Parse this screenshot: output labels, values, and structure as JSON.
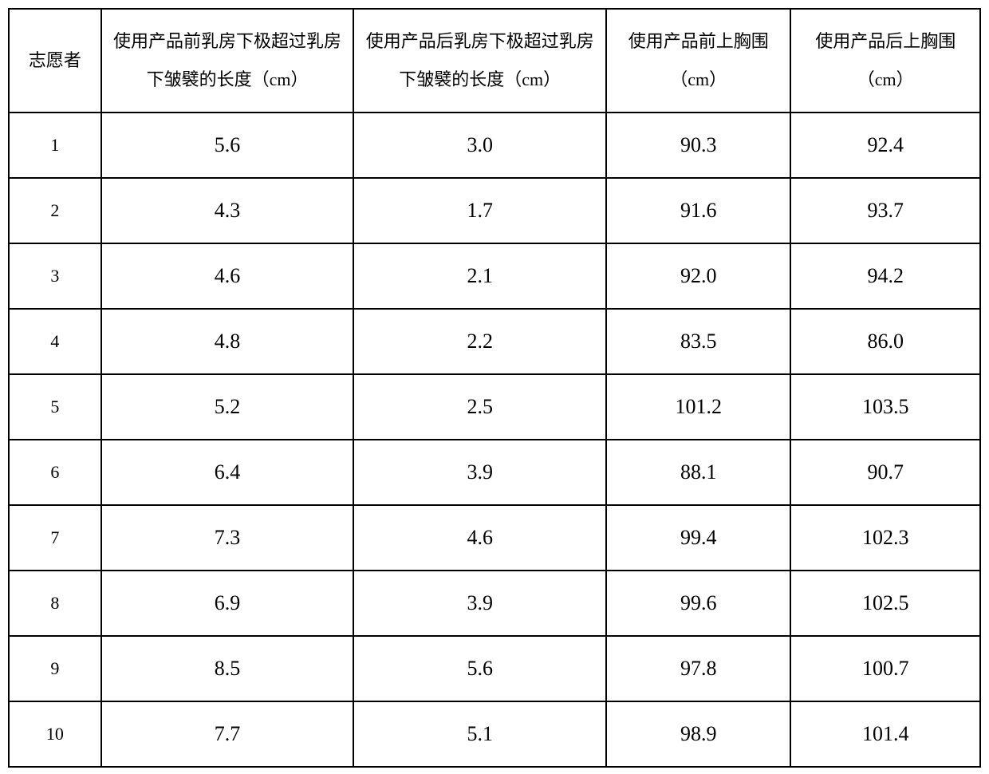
{
  "table": {
    "columns": [
      "志愿者",
      "使用产品前乳房下极超过乳房下皱襞的长度（cm）",
      "使用产品后乳房下极超过乳房下皱襞的长度（cm）",
      "使用产品前上胸围（cm）",
      "使用产品后上胸围（cm）"
    ],
    "rows": [
      [
        "1",
        "5.6",
        "3.0",
        "90.3",
        "92.4"
      ],
      [
        "2",
        "4.3",
        "1.7",
        "91.6",
        "93.7"
      ],
      [
        "3",
        "4.6",
        "2.1",
        "92.0",
        "94.2"
      ],
      [
        "4",
        "4.8",
        "2.2",
        "83.5",
        "86.0"
      ],
      [
        "5",
        "5.2",
        "2.5",
        "101.2",
        "103.5"
      ],
      [
        "6",
        "6.4",
        "3.9",
        "88.1",
        "90.7"
      ],
      [
        "7",
        "7.3",
        "4.6",
        "99.4",
        "102.3"
      ],
      [
        "8",
        "6.9",
        "3.9",
        "99.6",
        "102.5"
      ],
      [
        "9",
        "8.5",
        "5.6",
        "97.8",
        "100.7"
      ],
      [
        "10",
        "7.7",
        "5.1",
        "98.9",
        "101.4"
      ]
    ],
    "styling": {
      "border_color": "#000000",
      "border_width": 2,
      "background_color": "#ffffff",
      "text_color": "#000000",
      "header_fontsize": 22,
      "body_fontsize": 26,
      "header_line_height": 2.2,
      "header_row_height": 130,
      "body_row_height": 82,
      "column_widths_pct": [
        9.5,
        26,
        26,
        19,
        19.5
      ],
      "font_family_header": "SimSun",
      "font_family_body": "Times New Roman"
    }
  }
}
